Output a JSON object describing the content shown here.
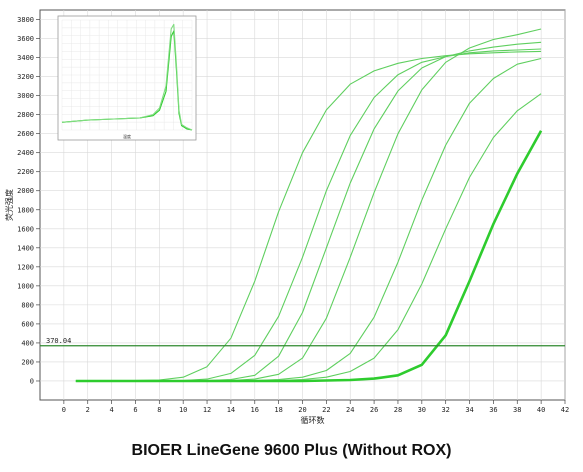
{
  "caption": "BIOER LineGene 9600 Plus  (Without ROX)",
  "chart_data": {
    "type": "line",
    "title": "",
    "xlabel": "循环数",
    "ylabel": "荧光强度",
    "xlim": [
      -2,
      42
    ],
    "ylim": [
      -200,
      3900
    ],
    "x_ticks": [
      0,
      2,
      4,
      6,
      8,
      10,
      12,
      14,
      16,
      18,
      20,
      22,
      24,
      26,
      28,
      30,
      32,
      34,
      36,
      38,
      40,
      42
    ],
    "y_ticks": [
      0,
      200,
      400,
      600,
      800,
      1000,
      1200,
      1400,
      1600,
      1800,
      2000,
      2200,
      2400,
      2600,
      2800,
      3000,
      3200,
      3400,
      3600,
      3800
    ],
    "grid": true,
    "legend": "none",
    "threshold": {
      "label": "370.04",
      "value": 370.04,
      "color": "#2f8a2f"
    },
    "series_color": "#5fcf5f",
    "highlight_color": "#2ecc2e",
    "series": [
      {
        "x": [
          1,
          4,
          8,
          10,
          12,
          14,
          16,
          18,
          20,
          22,
          24,
          26,
          28,
          30,
          32,
          34,
          36,
          38,
          40
        ],
        "values": [
          0,
          0,
          10,
          40,
          150,
          450,
          1050,
          1780,
          2400,
          2850,
          3120,
          3260,
          3340,
          3390,
          3420,
          3440,
          3450,
          3460,
          3465
        ]
      },
      {
        "x": [
          1,
          4,
          8,
          10,
          12,
          14,
          16,
          18,
          20,
          22,
          24,
          26,
          28,
          30,
          32,
          34,
          36,
          38,
          40
        ],
        "values": [
          0,
          0,
          0,
          5,
          20,
          80,
          270,
          680,
          1300,
          2000,
          2580,
          2980,
          3220,
          3350,
          3410,
          3450,
          3470,
          3480,
          3490
        ]
      },
      {
        "x": [
          1,
          4,
          8,
          10,
          12,
          14,
          16,
          18,
          20,
          22,
          24,
          26,
          28,
          30,
          32,
          34,
          36,
          38,
          40
        ],
        "values": [
          0,
          0,
          0,
          0,
          5,
          15,
          60,
          260,
          720,
          1400,
          2080,
          2650,
          3050,
          3290,
          3410,
          3470,
          3510,
          3540,
          3560
        ]
      },
      {
        "x": [
          1,
          4,
          8,
          10,
          12,
          14,
          16,
          18,
          20,
          22,
          24,
          26,
          28,
          30,
          32,
          34,
          36,
          38,
          40
        ],
        "values": [
          0,
          0,
          0,
          0,
          0,
          5,
          20,
          70,
          240,
          660,
          1300,
          1980,
          2600,
          3060,
          3350,
          3500,
          3590,
          3640,
          3700
        ]
      },
      {
        "x": [
          1,
          4,
          8,
          10,
          12,
          14,
          16,
          18,
          20,
          22,
          24,
          26,
          28,
          30,
          32,
          34,
          36,
          38,
          40
        ],
        "values": [
          0,
          0,
          0,
          0,
          0,
          0,
          5,
          15,
          40,
          110,
          290,
          670,
          1250,
          1900,
          2480,
          2920,
          3180,
          3330,
          3390
        ]
      },
      {
        "x": [
          1,
          4,
          8,
          10,
          12,
          14,
          16,
          18,
          20,
          22,
          24,
          26,
          28,
          30,
          32,
          34,
          36,
          38,
          40
        ],
        "values": [
          0,
          0,
          0,
          0,
          0,
          0,
          0,
          5,
          15,
          40,
          100,
          240,
          540,
          1020,
          1600,
          2140,
          2560,
          2840,
          3020
        ]
      },
      {
        "x": [
          1,
          4,
          8,
          10,
          12,
          14,
          16,
          18,
          20,
          22,
          24,
          26,
          28,
          30,
          32,
          34,
          36,
          38,
          40
        ],
        "values": [
          0,
          0,
          0,
          0,
          0,
          0,
          0,
          0,
          0,
          5,
          10,
          25,
          60,
          170,
          480,
          1050,
          1650,
          2180,
          2630
        ],
        "highlight": true
      }
    ],
    "inset": {
      "type": "line",
      "xlabel": "温度",
      "series": [
        {
          "x": [
            0,
            20,
            40,
            60,
            70,
            75,
            80,
            84,
            86,
            88,
            90,
            92,
            96,
            100
          ],
          "values": [
            0.07,
            0.09,
            0.1,
            0.11,
            0.13,
            0.18,
            0.35,
            0.85,
            0.9,
            0.55,
            0.15,
            0.04,
            0.01,
            0.0
          ]
        },
        {
          "x": [
            0,
            20,
            40,
            60,
            70,
            75,
            80,
            84,
            86,
            88,
            90,
            92,
            96,
            100
          ],
          "values": [
            0.07,
            0.09,
            0.1,
            0.11,
            0.14,
            0.2,
            0.4,
            0.92,
            0.96,
            0.6,
            0.18,
            0.05,
            0.02,
            0.0
          ]
        }
      ]
    }
  }
}
